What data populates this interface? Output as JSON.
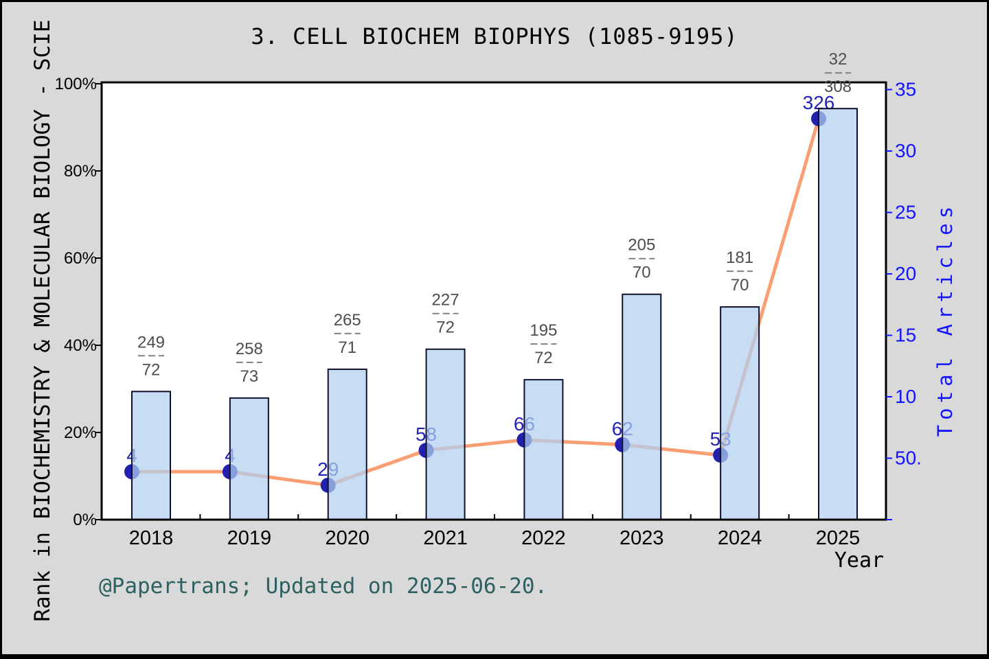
{
  "figure": {
    "footer": "@Papertrans; Updated on 2025-06-20.",
    "background_color": "#d9d9d9",
    "footer_color": "#2d6161"
  },
  "chart_data": {
    "type": "bar+line",
    "title": "3.  CELL BIOCHEM BIOPHYS (1085-9195)",
    "xlabel": "Year",
    "categories": [
      "2018",
      "2019",
      "2020",
      "2021",
      "2022",
      "2023",
      "2024",
      "2025"
    ],
    "left_axis": {
      "label": "Rank in BIOCHEMISTRY & MOLECULAR BIOLOGY - SCIE",
      "range": [
        0,
        100
      ],
      "tick_percents": [
        0,
        20,
        40,
        60,
        80,
        100
      ],
      "tick_labels": [
        "0%",
        "20%",
        "40%",
        "60%",
        "80%",
        "100%"
      ]
    },
    "right_axis": {
      "label": "Total Articles",
      "range": [
        0,
        35.6
      ],
      "tick_values": [
        0,
        5,
        10,
        15,
        20,
        25,
        30,
        35
      ],
      "tick_labels": [
        "",
        "50.",
        "10",
        "15",
        "20",
        "25",
        "30",
        "35"
      ]
    },
    "bars": {
      "name": "rank-percentile-bars",
      "percent_values": [
        29.4,
        27.9,
        34.5,
        39.1,
        32.1,
        51.7,
        48.8,
        94.3
      ],
      "fraction_labels": [
        {
          "num": "249",
          "den": "72"
        },
        {
          "num": "258",
          "den": "73"
        },
        {
          "num": "265",
          "den": "71"
        },
        {
          "num": "227",
          "den": "72"
        },
        {
          "num": "195",
          "den": "72"
        },
        {
          "num": "205",
          "den": "70"
        },
        {
          "num": "181",
          "den": "70"
        },
        {
          "num": "32",
          "den": "308"
        }
      ]
    },
    "line": {
      "name": "line-series",
      "percent_values": [
        11.0,
        11.0,
        7.9,
        15.9,
        18.3,
        17.2,
        14.8,
        92.0
      ],
      "point_labels": [
        "4",
        "4",
        "29",
        "58",
        "66",
        "62",
        "53",
        "326"
      ]
    },
    "colors": {
      "bar_fill": "rgba(176,208,240,0.72)",
      "bar_edge": "#10102a",
      "line": "#FA9E74",
      "marker": "#2121AD",
      "point_label": "#2222B4",
      "fraction_label": "#4d4d4d",
      "fraction_dash": "#808080",
      "right_axis": "#1414ff",
      "left_axis": "#000000",
      "plot_bg": "#ffffff"
    }
  }
}
